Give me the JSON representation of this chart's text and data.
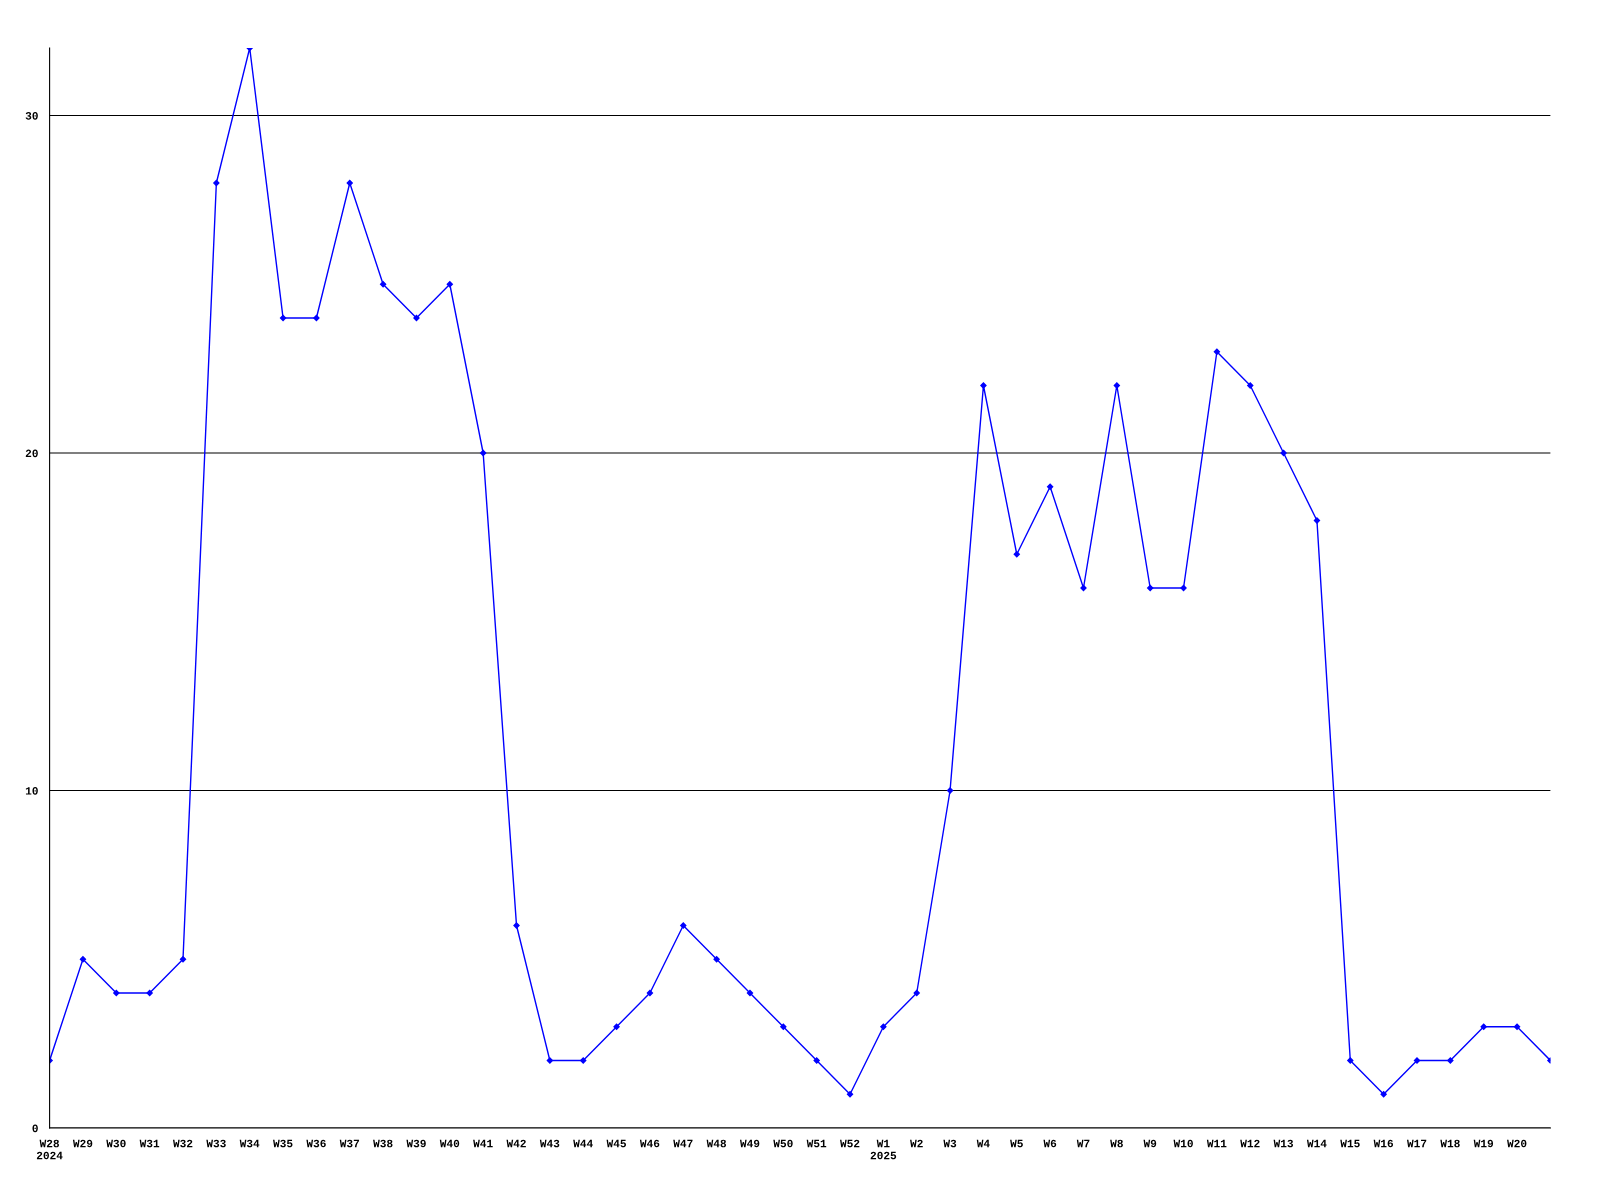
{
  "chart_data": {
    "type": "line",
    "categories": [
      "W28\n2024",
      "W29",
      "W30",
      "W31",
      "W32",
      "W33",
      "W34",
      "W35",
      "W36",
      "W37",
      "W38",
      "W39",
      "W40",
      "W41",
      "W42",
      "W43",
      "W44",
      "W45",
      "W46",
      "W47",
      "W48",
      "W49",
      "W50",
      "W51",
      "W52",
      "W1\n2025",
      "W2",
      "W3",
      "W4",
      "W5",
      "W6",
      "W7",
      "W8",
      "W9",
      "W10",
      "W11",
      "W12",
      "W13",
      "W14",
      "W15",
      "W16",
      "W17",
      "W18",
      "W19",
      "W20",
      null
    ],
    "series": [
      {
        "color": "#0000ff",
        "values": [
          2,
          5,
          4,
          4,
          5,
          28,
          32,
          24,
          24,
          28,
          25,
          24,
          25,
          20,
          6,
          2,
          2,
          3,
          4,
          6,
          5,
          4,
          3,
          2,
          1,
          3,
          4,
          10,
          22,
          17,
          19,
          16,
          22,
          16,
          16,
          23,
          22,
          20,
          18,
          2,
          1,
          2,
          2,
          3,
          3,
          2
        ]
      }
    ],
    "ylim": [
      0,
      32
    ],
    "yticks": [
      0,
      10,
      20,
      30
    ],
    "grid": "y",
    "marker": "diamond",
    "line_style": "solid",
    "legend": false
  }
}
